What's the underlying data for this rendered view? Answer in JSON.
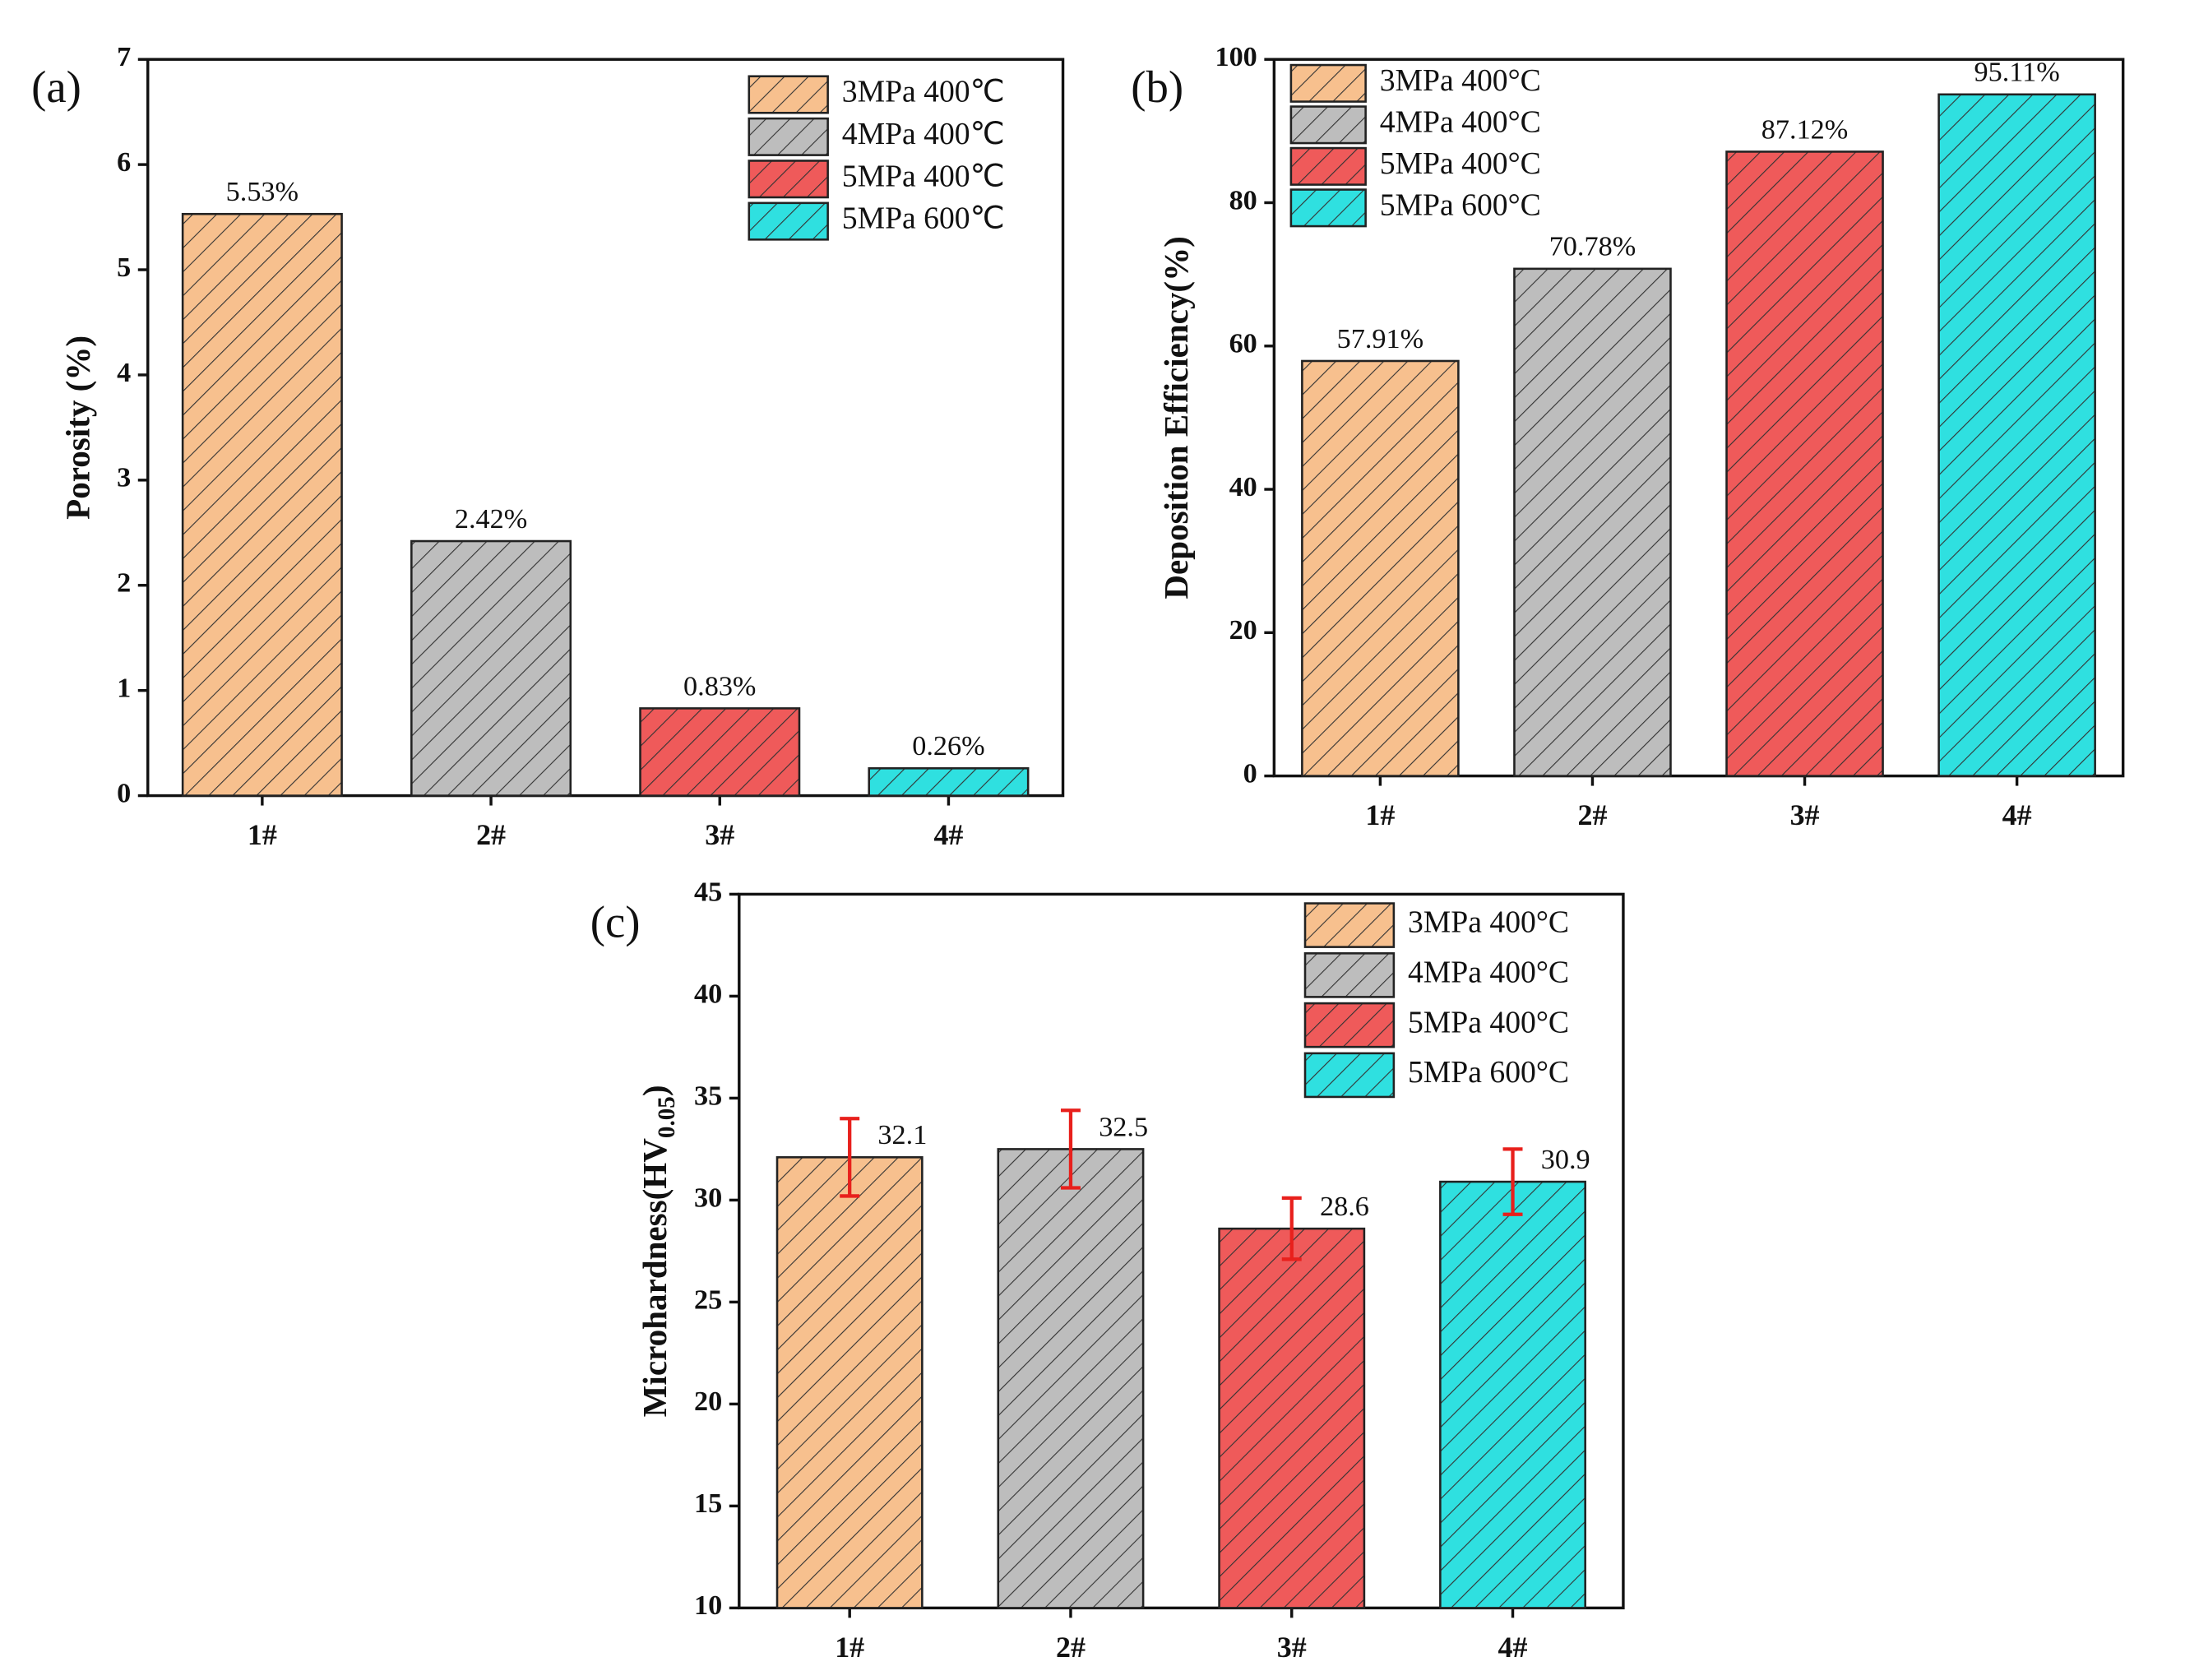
{
  "chart_data": [
    {
      "type": "bar",
      "panel": "(a)",
      "ylabel": "Porosity (%)",
      "categories": [
        "1#",
        "2#",
        "3#",
        "4#"
      ],
      "values": [
        5.53,
        2.42,
        0.83,
        0.26
      ],
      "value_labels": [
        "5.53%",
        "2.42%",
        "0.83%",
        "0.26%"
      ],
      "colors": [
        "#f7c08e",
        "#bdbdbd",
        "#ef5a5a",
        "#2fe0e0"
      ],
      "legend": [
        "3MPa  400℃",
        "4MPa  400℃",
        "5MPa  400℃",
        "5MPa  600℃"
      ],
      "ylim": [
        0,
        7
      ],
      "yticks": [
        0,
        1,
        2,
        3,
        4,
        5,
        6,
        7
      ],
      "hatch": true
    },
    {
      "type": "bar",
      "panel": "(b)",
      "ylabel": "Deposition Efficiency(%)",
      "categories": [
        "1#",
        "2#",
        "3#",
        "4#"
      ],
      "values": [
        57.91,
        70.78,
        87.12,
        95.11
      ],
      "value_labels": [
        "57.91%",
        "70.78%",
        "87.12%",
        "95.11%"
      ],
      "colors": [
        "#f7c08e",
        "#bdbdbd",
        "#ef5a5a",
        "#2fe0e0"
      ],
      "legend": [
        "3MPa 400°C",
        "4MPa 400°C",
        "5MPa 400°C",
        "5MPa 600°C"
      ],
      "ylim": [
        0,
        100
      ],
      "yticks": [
        0,
        20,
        40,
        60,
        80,
        100
      ],
      "hatch": true
    },
    {
      "type": "bar",
      "panel": "(c)",
      "ylabel": {
        "text": "Microhardness(HV",
        "sub": "0.05",
        "end": ")"
      },
      "categories": [
        "1#",
        "2#",
        "3#",
        "4#"
      ],
      "values": [
        32.1,
        32.5,
        28.6,
        30.9
      ],
      "errors": [
        1.9,
        1.9,
        1.5,
        1.6
      ],
      "error_color": "#e8201c",
      "colors": [
        "#f7c08e",
        "#bdbdbd",
        "#ef5a5a",
        "#2fe0e0"
      ],
      "legend": [
        "3MPa 400°C",
        "4MPa 400°C",
        "5MPa 400°C",
        "5MPa 600°C"
      ],
      "ylim": [
        10,
        45
      ],
      "yticks": [
        10,
        15,
        20,
        25,
        30,
        35,
        40,
        45
      ],
      "hatch": true
    }
  ]
}
